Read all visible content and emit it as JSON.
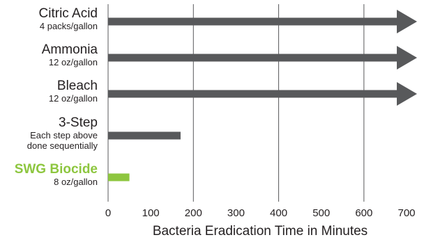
{
  "chart_data": {
    "type": "bar",
    "orientation": "horizontal",
    "xlabel": "Bacteria Eradication Time in Minutes",
    "xlim": [
      0,
      700
    ],
    "xticks": [
      0,
      100,
      200,
      300,
      400,
      500,
      600,
      700
    ],
    "grid": {
      "vertical": true,
      "at": [
        0,
        200,
        400,
        600
      ]
    },
    "colors": {
      "default": "#58595b",
      "highlight": "#8dc63f",
      "grid": "#58595b",
      "text": "#231f20"
    },
    "categories": [
      {
        "name": "Citric Acid",
        "sublabel": [
          "4 packs/gallon"
        ],
        "value": 700,
        "exceeds_axis": true,
        "highlight": false
      },
      {
        "name": "Ammonia",
        "sublabel": [
          "12 oz/gallon"
        ],
        "value": 700,
        "exceeds_axis": true,
        "highlight": false
      },
      {
        "name": "Bleach",
        "sublabel": [
          "12 oz/gallon"
        ],
        "value": 700,
        "exceeds_axis": true,
        "highlight": false
      },
      {
        "name": "3-Step",
        "sublabel": [
          "Each step above",
          "done sequentially"
        ],
        "value": 170,
        "exceeds_axis": false,
        "highlight": false
      },
      {
        "name": "SWG Biocide",
        "sublabel": [
          "8 oz/gallon"
        ],
        "value": 50,
        "exceeds_axis": false,
        "highlight": true
      }
    ]
  }
}
